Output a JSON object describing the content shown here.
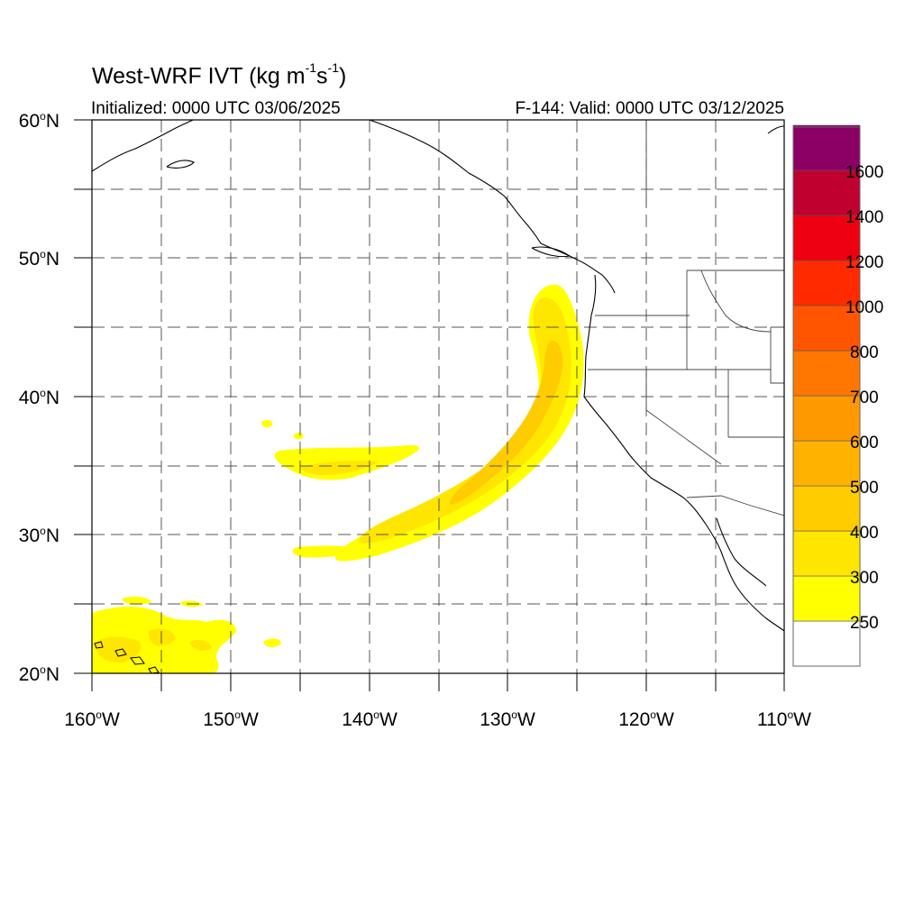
{
  "title": {
    "main": "West-WRF IVT (kg m",
    "sup1": "-1",
    "mid": "s",
    "sup2": "-1",
    "end": ")"
  },
  "initialized": "Initialized: 0000 UTC 03/06/2025",
  "valid": "F-144: Valid: 0000 UTC 03/12/2025",
  "lat_labels": [
    {
      "deg": "60",
      "hemi": "N"
    },
    {
      "deg": "50",
      "hemi": "N"
    },
    {
      "deg": "40",
      "hemi": "N"
    },
    {
      "deg": "30",
      "hemi": "N"
    },
    {
      "deg": "20",
      "hemi": "N"
    }
  ],
  "lon_labels": [
    {
      "deg": "160",
      "hemi": "W"
    },
    {
      "deg": "150",
      "hemi": "W"
    },
    {
      "deg": "140",
      "hemi": "W"
    },
    {
      "deg": "130",
      "hemi": "W"
    },
    {
      "deg": "120",
      "hemi": "W"
    },
    {
      "deg": "110",
      "hemi": "W"
    }
  ],
  "map_extent": {
    "lon": [
      -160,
      -110
    ],
    "lat": [
      20,
      60
    ]
  },
  "colorbar": {
    "labels": [
      "250",
      "300",
      "400",
      "500",
      "600",
      "700",
      "800",
      "1000",
      "1200",
      "1400",
      "1600"
    ],
    "colors": [
      "#ffffff",
      "#ffff00",
      "#ffe600",
      "#ffcc00",
      "#ffb300",
      "#ff9900",
      "#ff7700",
      "#ff5500",
      "#ff2a00",
      "#ee0010",
      "#c0002f",
      "#8c0066",
      "#5a008c"
    ]
  },
  "ivt_colors": {
    "c250": "#ffff00",
    "c300": "#ffe600",
    "c400": "#ffcc00"
  }
}
